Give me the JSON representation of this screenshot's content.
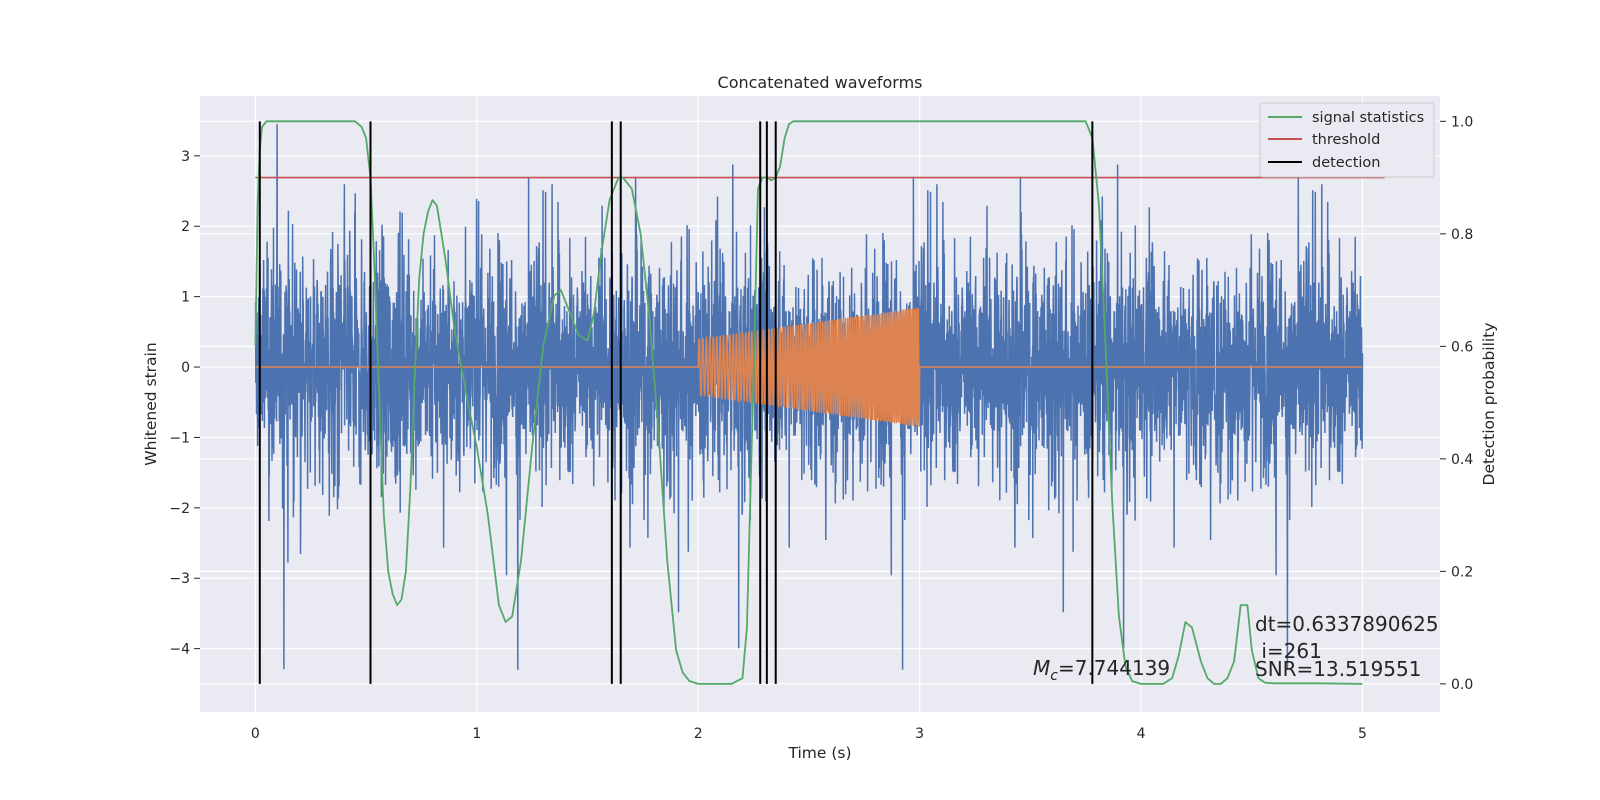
{
  "chart_data": {
    "type": "line",
    "title": "Concatenated waveforms",
    "xlabel": "Time (s)",
    "ylabel": "Whitened strain",
    "y2label": "Detection probability",
    "xlim": [
      -0.25,
      5.35
    ],
    "ylim": [
      -4.9,
      3.85
    ],
    "y2lim": [
      -0.05,
      1.045
    ],
    "xticks": [
      0,
      1,
      2,
      3,
      4,
      5
    ],
    "xtick_labels": [
      "0",
      "1",
      "2",
      "3",
      "4",
      "5"
    ],
    "yticks": [
      -4,
      -3,
      -2,
      -1,
      0,
      1,
      2,
      3
    ],
    "ytick_labels": [
      "−4",
      "−3",
      "−2",
      "−1",
      "0",
      "1",
      "2",
      "3"
    ],
    "y2ticks": [
      0.0,
      0.2,
      0.4,
      0.6,
      0.8,
      1.0
    ],
    "y2tick_labels": [
      "0.0",
      "0.2",
      "0.4",
      "0.6",
      "0.8",
      "1.0"
    ],
    "grid": true,
    "legend_position": "top-right",
    "colors": {
      "background": "#eaeaf2",
      "grid": "#ffffff",
      "strain": "#4c72b0",
      "template": "#dd8452",
      "signal_statistics": "#55a868",
      "threshold": "#c44e52",
      "detection": "#000000"
    },
    "legend": [
      {
        "label": "signal statistics",
        "color": "#55a868"
      },
      {
        "label": "threshold",
        "color": "#c44e52"
      },
      {
        "label": "detection",
        "color": "#000000"
      }
    ],
    "strain_envelope": {
      "x_range": [
        0.0,
        5.0
      ],
      "typical_amplitude": 2.0,
      "peak_values": [
        3.3,
        3.2,
        3.4,
        3.3,
        3.4,
        3.4,
        2.6,
        3.1
      ],
      "trough_values": [
        -4.2,
        -3.8,
        -3.9,
        -3.5,
        -3.3,
        -3.2
      ]
    },
    "template": {
      "name": "template",
      "x_range": [
        0.0,
        5.0
      ],
      "chirp_range": [
        2.0,
        3.0
      ],
      "amplitude_start": 0.4,
      "amplitude_end": 0.85
    },
    "threshold": {
      "x": [
        0.0,
        5.1
      ],
      "y": 0.9
    },
    "signal_statistics": {
      "x": [
        0.0,
        0.01,
        0.02,
        0.03,
        0.05,
        0.08,
        0.12,
        0.2,
        0.3,
        0.4,
        0.45,
        0.48,
        0.5,
        0.52,
        0.54,
        0.56,
        0.58,
        0.6,
        0.62,
        0.64,
        0.66,
        0.68,
        0.7,
        0.72,
        0.74,
        0.76,
        0.78,
        0.8,
        0.82,
        0.84,
        0.86,
        0.9,
        0.95,
        1.0,
        1.05,
        1.1,
        1.13,
        1.16,
        1.2,
        1.25,
        1.3,
        1.35,
        1.38,
        1.42,
        1.46,
        1.5,
        1.53,
        1.56,
        1.6,
        1.64,
        1.66,
        1.7,
        1.74,
        1.78,
        1.82,
        1.86,
        1.9,
        1.93,
        1.96,
        2.0,
        2.05,
        2.1,
        2.15,
        2.2,
        2.22,
        2.25,
        2.27,
        2.29,
        2.31,
        2.33,
        2.35,
        2.37,
        2.39,
        2.41,
        2.43,
        2.46,
        2.5,
        2.6,
        3.0,
        3.5,
        3.75,
        3.78,
        3.81,
        3.84,
        3.87,
        3.9,
        3.93,
        3.96,
        4.0,
        4.05,
        4.1,
        4.14,
        4.17,
        4.2,
        4.23,
        4.27,
        4.3,
        4.33,
        4.36,
        4.39,
        4.42,
        4.45,
        4.48,
        4.5,
        4.53,
        4.56,
        4.6,
        4.7,
        4.8,
        5.0
      ],
      "y": [
        0.6,
        0.85,
        0.95,
        0.99,
        1.0,
        1.0,
        1.0,
        1.0,
        1.0,
        1.0,
        1.0,
        0.99,
        0.97,
        0.9,
        0.72,
        0.5,
        0.3,
        0.2,
        0.16,
        0.14,
        0.15,
        0.2,
        0.35,
        0.55,
        0.72,
        0.8,
        0.84,
        0.86,
        0.85,
        0.8,
        0.75,
        0.63,
        0.52,
        0.42,
        0.3,
        0.14,
        0.11,
        0.12,
        0.22,
        0.42,
        0.6,
        0.69,
        0.7,
        0.66,
        0.62,
        0.61,
        0.66,
        0.76,
        0.86,
        0.9,
        0.9,
        0.88,
        0.8,
        0.65,
        0.45,
        0.22,
        0.06,
        0.02,
        0.005,
        0.0,
        0.0,
        0.0,
        0.0,
        0.01,
        0.1,
        0.55,
        0.88,
        0.9,
        0.9,
        0.895,
        0.9,
        0.92,
        0.97,
        0.995,
        1.0,
        1.0,
        1.0,
        1.0,
        1.0,
        1.0,
        1.0,
        0.97,
        0.85,
        0.6,
        0.32,
        0.12,
        0.03,
        0.005,
        0.0,
        0.0,
        0.0,
        0.01,
        0.05,
        0.11,
        0.1,
        0.04,
        0.01,
        0.0,
        0.0,
        0.01,
        0.04,
        0.14,
        0.14,
        0.06,
        0.01,
        0.002,
        0.001,
        0.001,
        0.001,
        0.0
      ]
    },
    "detections_x": [
      0.02,
      0.52,
      1.61,
      1.65,
      2.28,
      2.31,
      2.35,
      3.78
    ],
    "annotations": {
      "mc": "=7.744139",
      "dt": "dt=0.6337890625",
      "i": " i=261",
      "snr": "SNR=13.519551"
    }
  }
}
